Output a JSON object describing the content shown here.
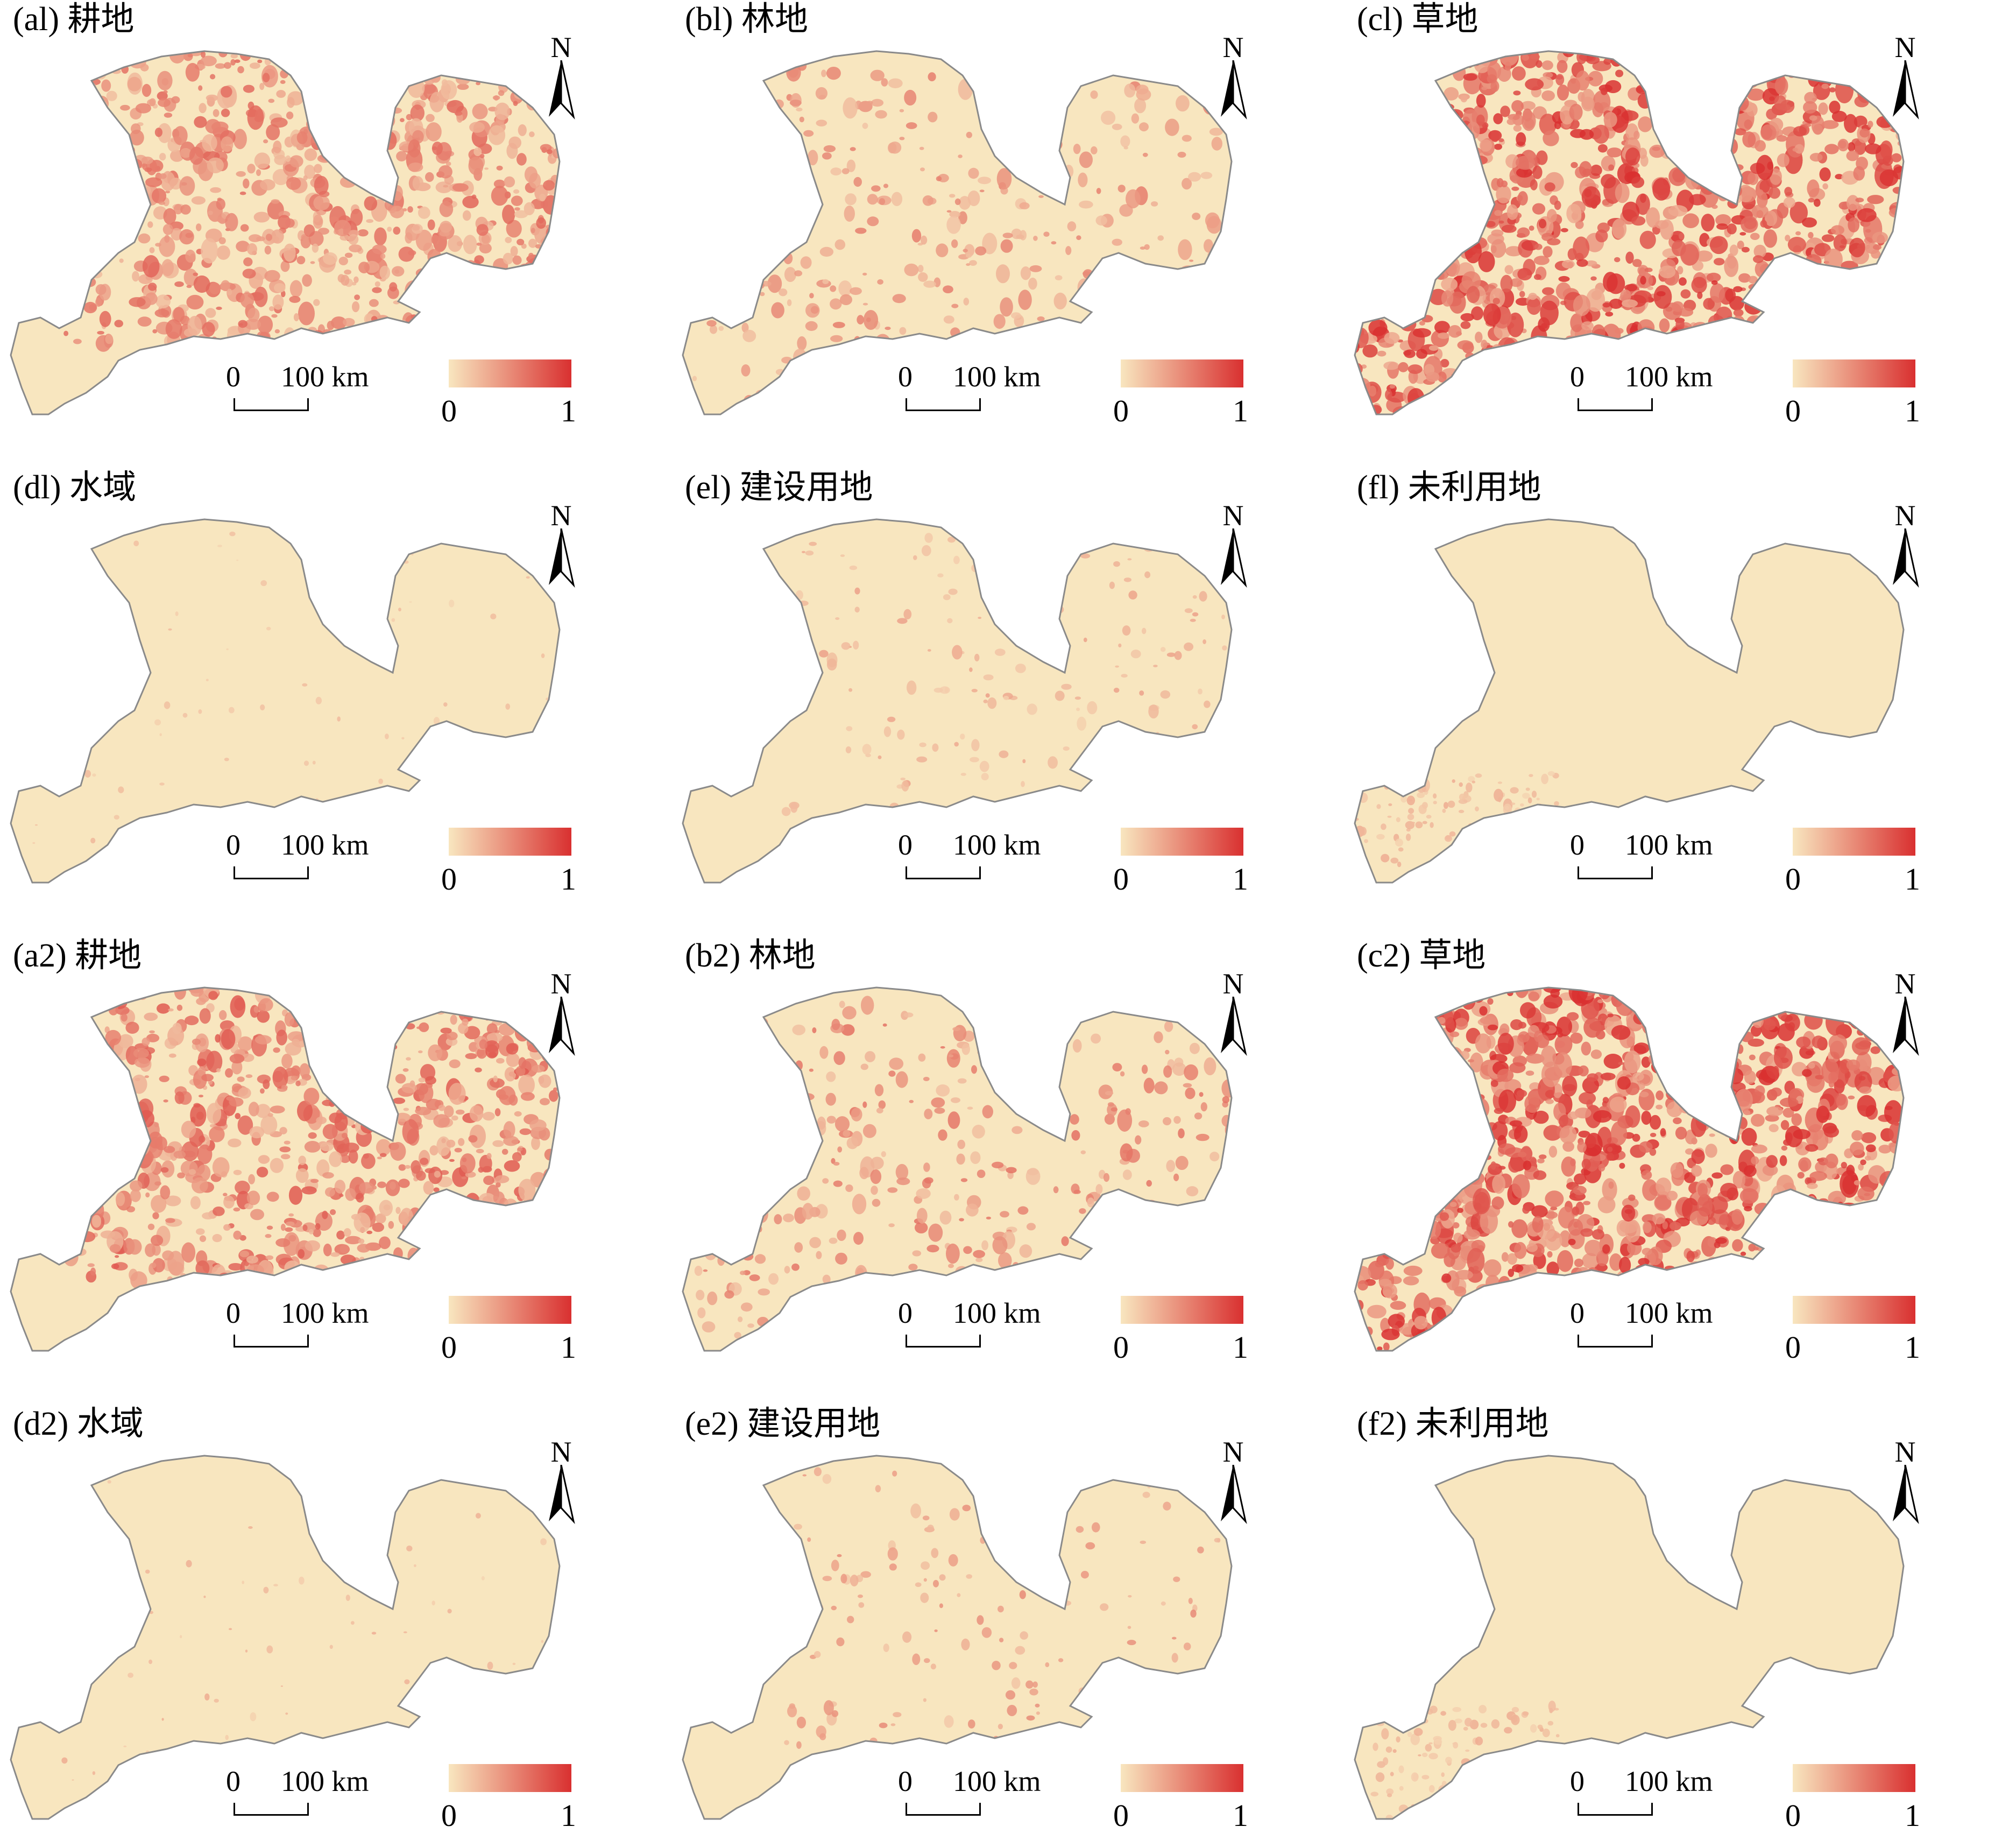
{
  "colors": {
    "low": "#f8e6bf",
    "high": "#d93030",
    "boundary": "#8a8a8a"
  },
  "scale": {
    "zero": "0",
    "distance": "100 km"
  },
  "legend": {
    "min": "0",
    "max": "1"
  },
  "north": "N",
  "panels": [
    {
      "id": "a1",
      "title": "(al) 耕地",
      "intensity": 0.55,
      "pattern": "cropland"
    },
    {
      "id": "b1",
      "title": "(bl) 林地",
      "intensity": 0.45,
      "pattern": "forest"
    },
    {
      "id": "c1",
      "title": "(cl) 草地",
      "intensity": 0.8,
      "pattern": "grassland"
    },
    {
      "id": "d1",
      "title": "(dl) 水域",
      "intensity": 0.2,
      "pattern": "water"
    },
    {
      "id": "e1",
      "title": "(el) 建设用地",
      "intensity": 0.3,
      "pattern": "builtup"
    },
    {
      "id": "f1",
      "title": "(fl) 未利用地",
      "intensity": 0.25,
      "pattern": "unused"
    },
    {
      "id": "a2",
      "title": "(a2) 耕地",
      "intensity": 0.6,
      "pattern": "cropland"
    },
    {
      "id": "b2",
      "title": "(b2) 林地",
      "intensity": 0.5,
      "pattern": "forest"
    },
    {
      "id": "c2",
      "title": "(c2) 草地",
      "intensity": 0.85,
      "pattern": "grassland"
    },
    {
      "id": "d2",
      "title": "(d2) 水域",
      "intensity": 0.25,
      "pattern": "water"
    },
    {
      "id": "e2",
      "title": "(e2) 建设用地",
      "intensity": 0.4,
      "pattern": "builtup"
    },
    {
      "id": "f2",
      "title": "(f2) 未利用地",
      "intensity": 0.25,
      "pattern": "unused"
    }
  ]
}
